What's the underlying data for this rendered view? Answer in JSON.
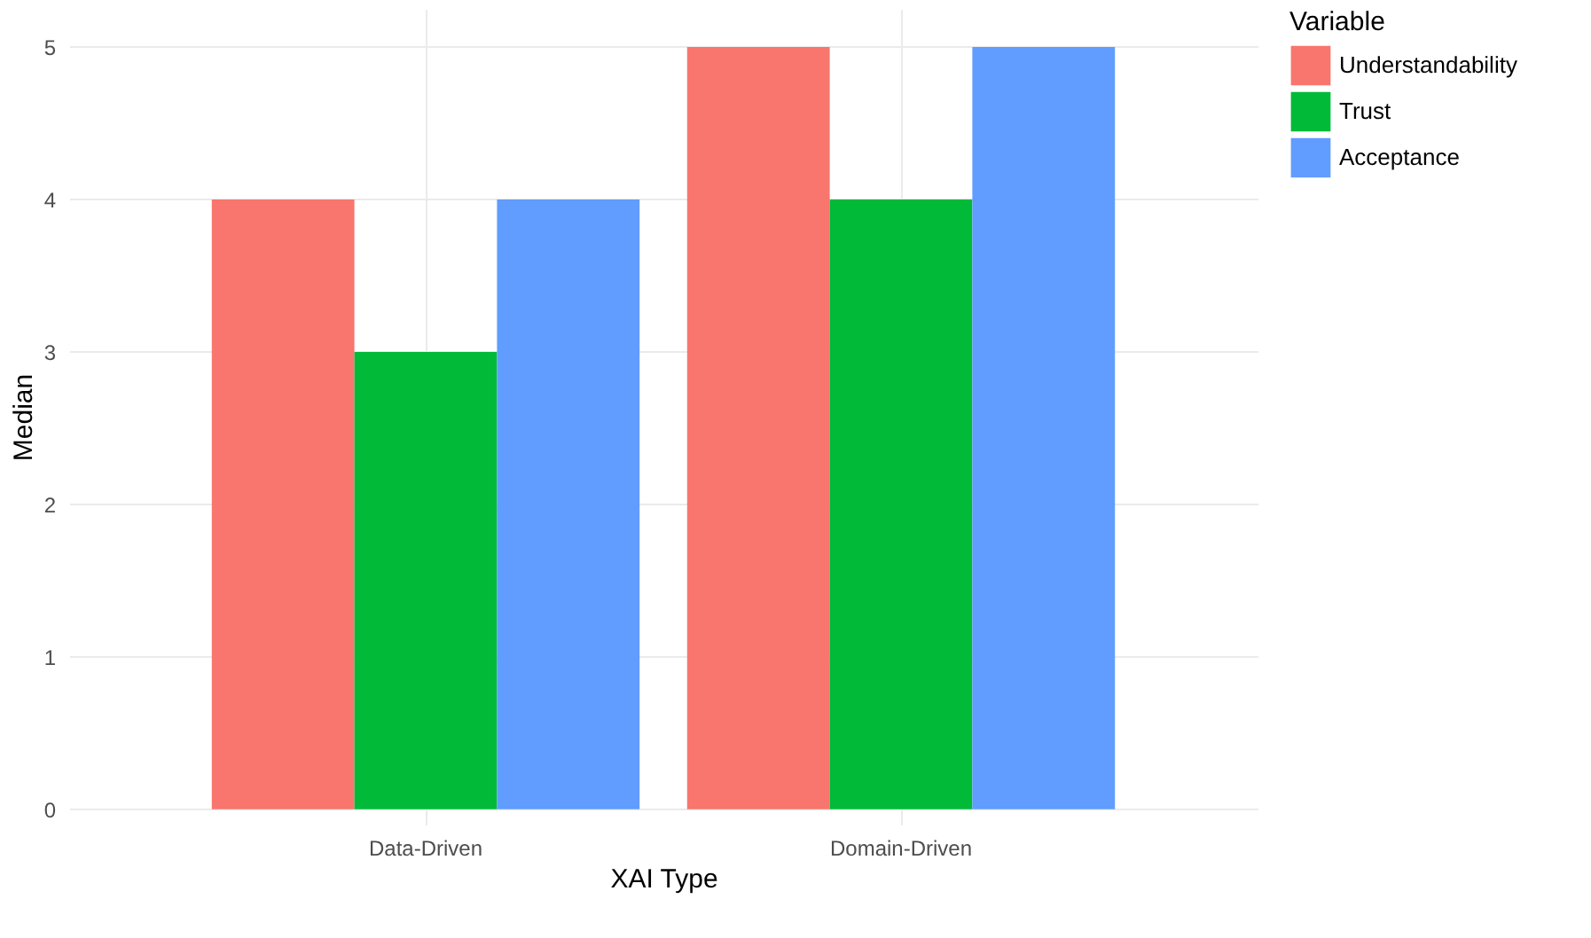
{
  "chart_data": {
    "type": "bar",
    "xlabel": "XAI Type",
    "ylabel": "Median",
    "legend_title": "Variable",
    "categories": [
      "Data-Driven",
      "Domain-Driven"
    ],
    "series": [
      {
        "name": "Understandability",
        "color": "#f8766d",
        "values": [
          4,
          5
        ]
      },
      {
        "name": "Trust",
        "color": "#00ba38",
        "values": [
          3,
          4
        ]
      },
      {
        "name": "Acceptance",
        "color": "#619cff",
        "values": [
          4,
          5
        ]
      }
    ],
    "ylim": [
      -0.1,
      5.25
    ],
    "yticks": [
      0,
      1,
      2,
      3,
      4,
      5
    ],
    "grid": true,
    "legend": "right"
  }
}
